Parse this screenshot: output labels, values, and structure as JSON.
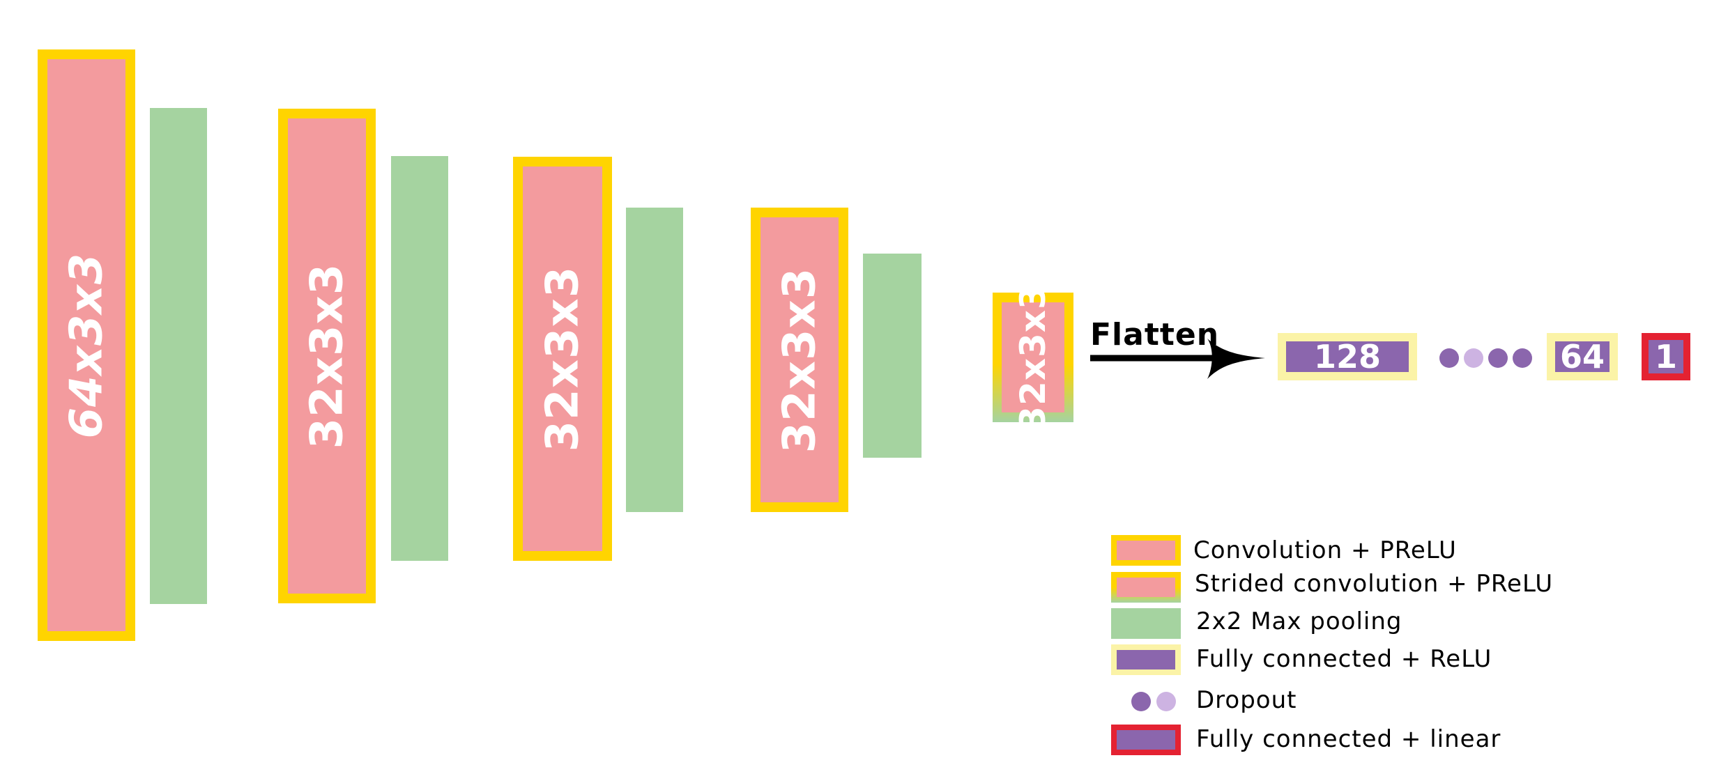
{
  "network": {
    "conv_blocks": [
      "64x3x3",
      "32x3x3",
      "32x3x3",
      "32x3x3"
    ],
    "strided_block": "32x3x3",
    "flatten_label": "Flatten",
    "fc_layers": [
      "128",
      "64"
    ],
    "output_layer": "1"
  },
  "legend": {
    "conv": "Convolution + PReLU",
    "strided": "Strided convolution + PReLU",
    "pool": "2x2 Max pooling",
    "fc_relu": "Fully connected + ReLU",
    "dropout": "Dropout",
    "fc_linear": "Fully connected + linear"
  },
  "colors": {
    "conv_fill": "#f39b9e",
    "conv_border": "#ffd400",
    "pool": "#a5d3a0",
    "fc_fill": "#8b66ad",
    "fc_relu_border": "#fbf3a7",
    "fc_linear_border": "#e42232",
    "dropout_dark": "#8b66ad",
    "dropout_light": "#cdb3e2"
  }
}
